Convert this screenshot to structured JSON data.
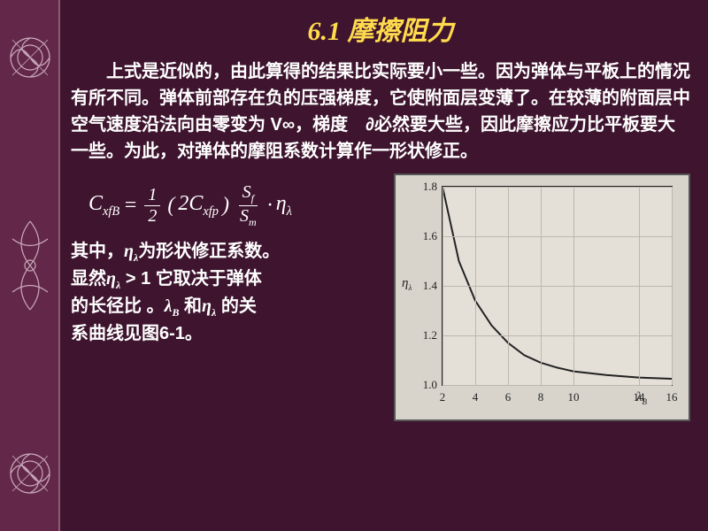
{
  "title": "6.1 摩擦阻力",
  "paragraph1": "上式是近似的，由此算得的结果比实际要小一些。因为弹体与平板上的情况有所不同。弹体前部存在负的压强梯度，它使附面层变薄了。在较薄的附面层中空气速度沿法向由零变为 V∞，梯度　∂必然要大些，因此摩擦应力比平板要大一些。为此，对弹体的摩阻系数计算作一形状修正。",
  "formula": {
    "lhs_main": "C",
    "lhs_sub": "xfB",
    "half_num": "1",
    "half_den": "2",
    "coef_main": "2C",
    "coef_sub": "xfp",
    "ratio_num_main": "S",
    "ratio_num_sub": "f",
    "ratio_den_main": "S",
    "ratio_den_sub": "m",
    "eta": "η",
    "eta_sub": "λ"
  },
  "caption_parts": {
    "l1a": "其中，",
    "eta": "η",
    "eta_sub": "λ",
    "l1b": "为形状修正系数。",
    "l2a": "显然",
    "gt": " > 1",
    "l2b": " 它取决于弹体",
    "l3a": "的长径比 。",
    "lambda": "λ",
    "lambda_sub": "B",
    "and": " 和",
    "l3b": " 的关",
    "l4": "系曲线见图6-1。"
  },
  "chart": {
    "type": "line",
    "background_color": "#e4e0d8",
    "frame_color": "#222222",
    "grid_color": "#bdb8ae",
    "curve_color": "#222222",
    "xlim": [
      2,
      16
    ],
    "ylim": [
      1.0,
      1.8
    ],
    "xticks": [
      2,
      4,
      6,
      8,
      10,
      14,
      16
    ],
    "yticks": [
      1.0,
      1.2,
      1.4,
      1.6,
      1.8
    ],
    "xlabel": "λ_B",
    "ylabel": "η_λ",
    "x": [
      2,
      3,
      4,
      5,
      6,
      7,
      8,
      9,
      10,
      12,
      14,
      16
    ],
    "y": [
      1.8,
      1.5,
      1.34,
      1.24,
      1.17,
      1.12,
      1.09,
      1.07,
      1.055,
      1.04,
      1.03,
      1.025
    ],
    "line_width": 2
  }
}
